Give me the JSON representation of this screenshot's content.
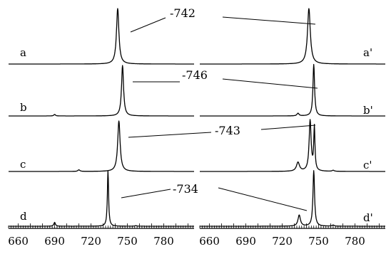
{
  "chart_data": {
    "type": "line",
    "title": "",
    "xlabel": "",
    "ylabel": "",
    "xlim": [
      652,
      805
    ],
    "tick_values": [
      660,
      690,
      720,
      750,
      780
    ],
    "tick_labels": [
      "660",
      "690",
      "720",
      "750",
      "780"
    ],
    "minor_tick_step": 2,
    "panels": [
      {
        "series": [
          {
            "label": "a",
            "peaks": [
              {
                "x": 742,
                "h": 1.0,
                "w": 1.2
              }
            ]
          },
          {
            "label": "b",
            "peaks": [
              {
                "x": 746,
                "h": 0.96,
                "w": 1.0
              },
              {
                "x": 690,
                "h": 0.03,
                "w": 0.8
              }
            ]
          },
          {
            "label": "c",
            "peaks": [
              {
                "x": 743,
                "h": 0.96,
                "w": 1.2
              },
              {
                "x": 710,
                "h": 0.03,
                "w": 1.0
              }
            ]
          },
          {
            "label": "d",
            "peaks": [
              {
                "x": 734,
                "h": 1.0,
                "w": 0.6
              },
              {
                "x": 690,
                "h": 0.07,
                "w": 0.8
              },
              {
                "x": 757,
                "h": 0.01,
                "w": 1.0
              }
            ]
          }
        ]
      },
      {
        "series": [
          {
            "label": "a'",
            "peaks": [
              {
                "x": 742,
                "h": 1.0,
                "w": 1.4
              }
            ]
          },
          {
            "label": "b'",
            "peaks": [
              {
                "x": 746,
                "h": 0.98,
                "w": 0.8
              },
              {
                "x": 733,
                "h": 0.05,
                "w": 1.0
              }
            ]
          },
          {
            "label": "c'",
            "peaks": [
              {
                "x": 743,
                "h": 0.96,
                "w": 1.0
              },
              {
                "x": 746.5,
                "h": 0.82,
                "w": 0.6
              },
              {
                "x": 733,
                "h": 0.17,
                "w": 1.5
              },
              {
                "x": 762,
                "h": 0.02,
                "w": 1.0
              }
            ]
          },
          {
            "label": "d'",
            "peaks": [
              {
                "x": 746,
                "h": 1.0,
                "w": 0.8
              },
              {
                "x": 734,
                "h": 0.2,
                "w": 1.2
              },
              {
                "x": 762,
                "h": 0.02,
                "w": 1.0
              }
            ]
          }
        ]
      }
    ],
    "annotations": [
      "-742",
      "-746",
      "-743",
      "-734"
    ]
  }
}
